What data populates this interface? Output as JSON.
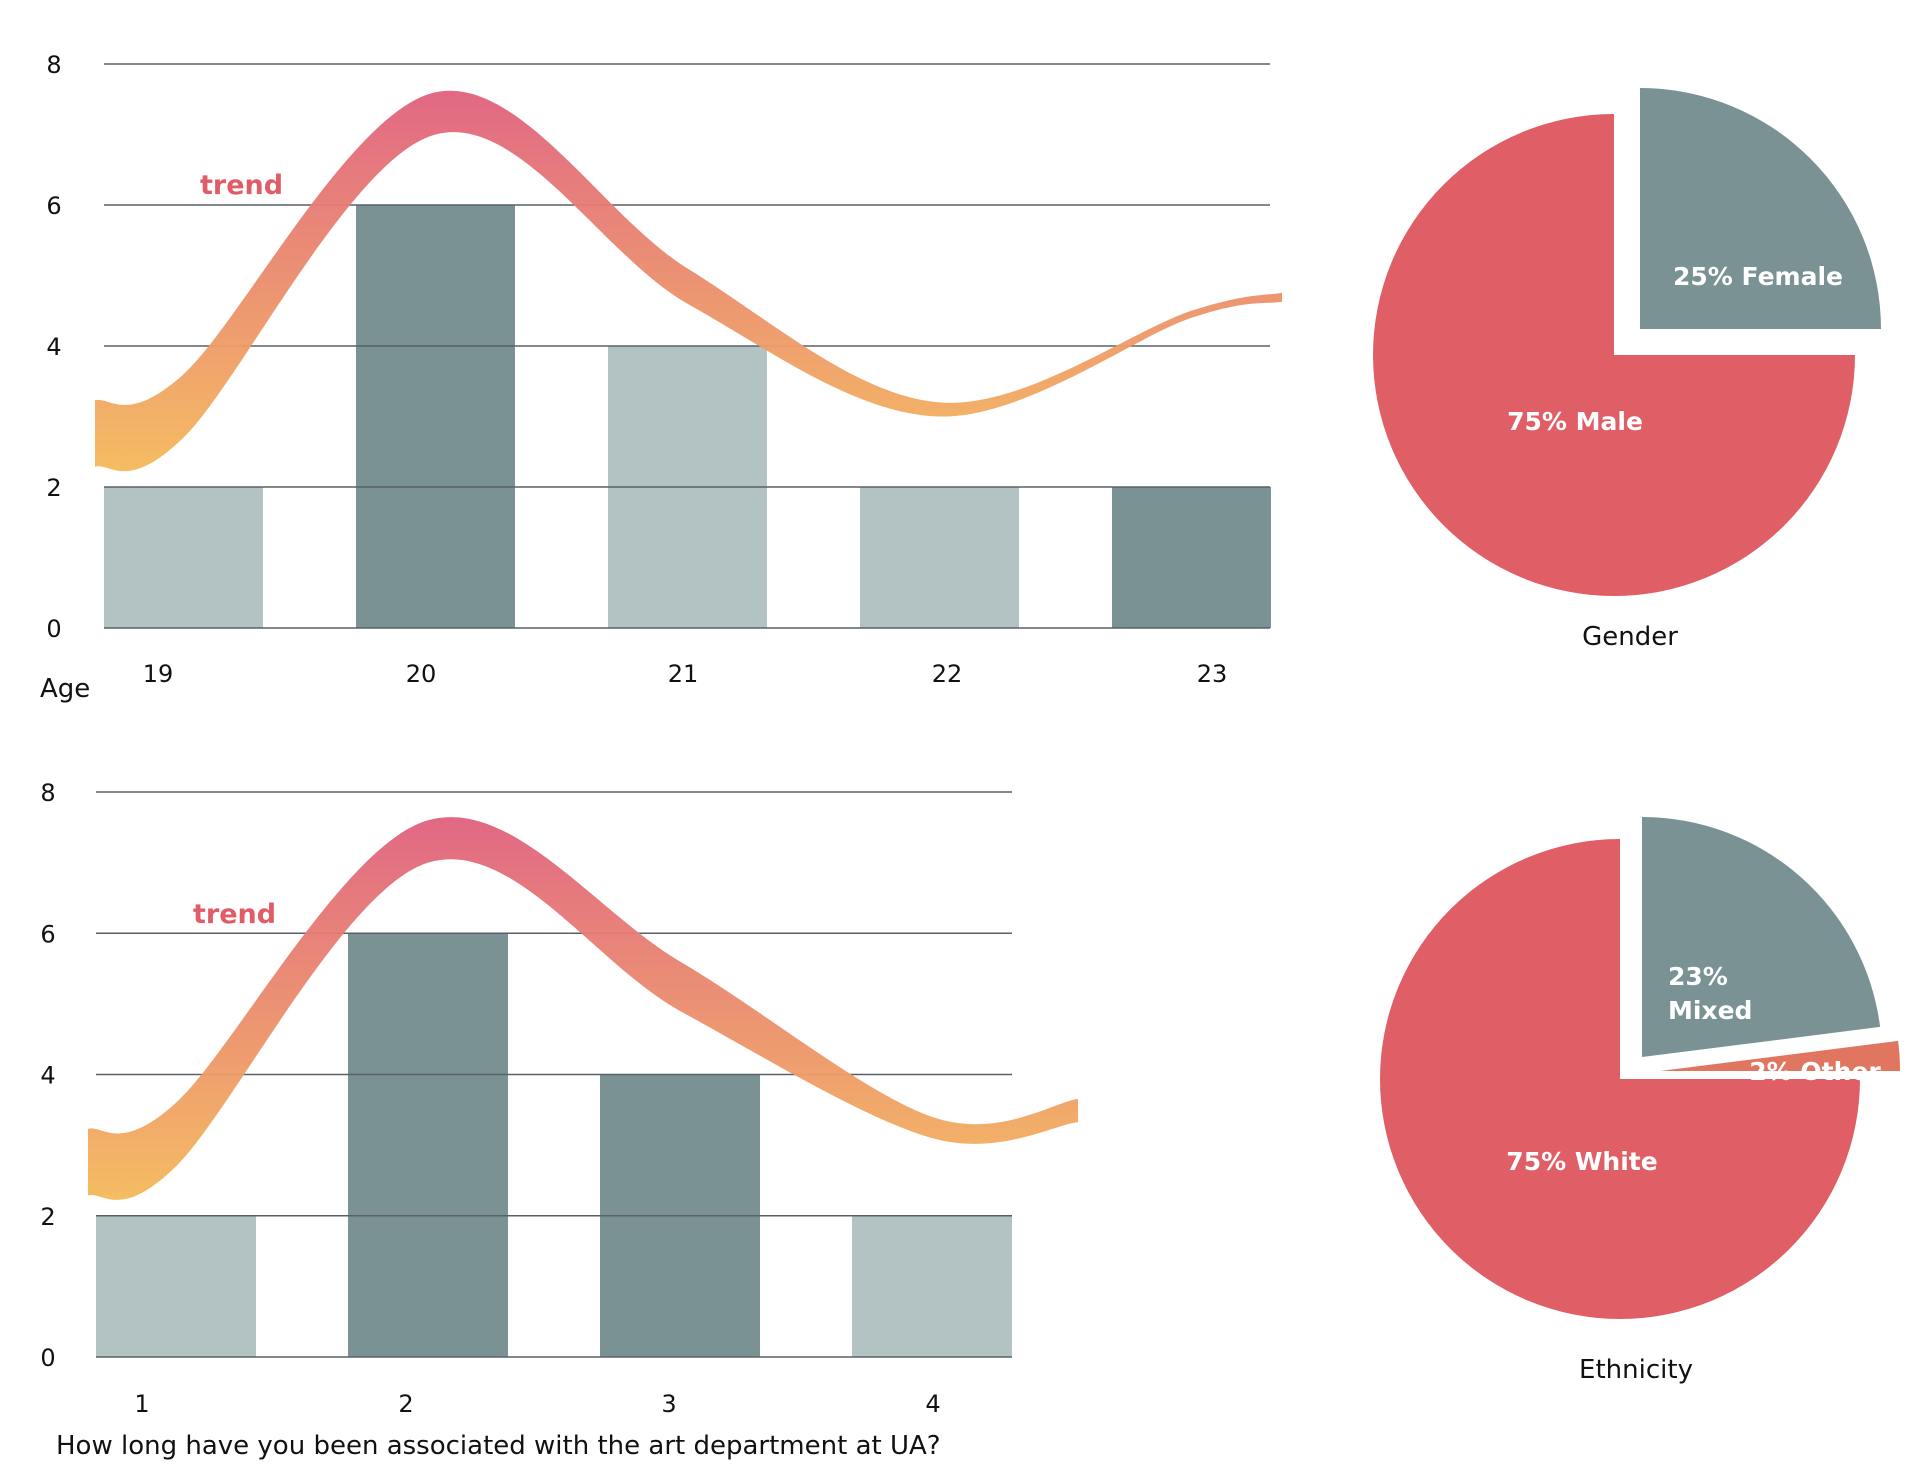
{
  "chart_data": [
    {
      "id": "age",
      "type": "bar",
      "title": "",
      "xlabel": "Age",
      "ylabel": "",
      "ylim": [
        0,
        8
      ],
      "yticks": [
        "0",
        "2",
        "4",
        "6",
        "8"
      ],
      "grid": true,
      "categories": [
        "19",
        "20",
        "21",
        "22",
        "23"
      ],
      "values": [
        2,
        6,
        4,
        2,
        2
      ],
      "bar_shades": [
        "light",
        "dark",
        "light",
        "light",
        "dark"
      ],
      "trend": {
        "label": "trend",
        "upper": [
          3.6,
          7.6,
          5.1,
          3.2,
          4.5
        ],
        "lower": [
          2.7,
          7.0,
          4.6,
          3.0,
          4.4
        ]
      }
    },
    {
      "id": "years_associated",
      "type": "bar",
      "title": "",
      "xlabel": "How long have you been associated with the art department at UA?",
      "ylabel": "",
      "ylim": [
        0,
        8
      ],
      "yticks": [
        "0",
        "2",
        "4",
        "6",
        "8"
      ],
      "grid": true,
      "categories": [
        "1",
        "2",
        "3",
        "4"
      ],
      "values": [
        2,
        6,
        4,
        2
      ],
      "bar_shades": [
        "light",
        "dark",
        "dark",
        "light"
      ],
      "trend": {
        "label": "trend",
        "upper": [
          3.6,
          7.6,
          5.6,
          3.4
        ],
        "lower": [
          2.7,
          7.0,
          4.9,
          3.1
        ]
      }
    },
    {
      "id": "gender",
      "type": "pie",
      "title": "Gender",
      "slices": [
        {
          "label": "25% Female",
          "name": "Female",
          "value": 25,
          "color": "#7a9294",
          "exploded": true
        },
        {
          "label": "75% Male",
          "name": "Male",
          "value": 75,
          "color": "#e05f66",
          "exploded": false
        }
      ]
    },
    {
      "id": "ethnicity",
      "type": "pie",
      "title": "Ethnicity",
      "slices": [
        {
          "label": "23% Mixed",
          "name": "Mixed",
          "value": 23,
          "color": "#7a9294",
          "exploded": true
        },
        {
          "label": "2% Other",
          "name": "Other",
          "value": 2,
          "color": "#e07560",
          "exploded": true
        },
        {
          "label": "75% White",
          "name": "White",
          "value": 75,
          "color": "#e05f66",
          "exploded": false
        }
      ]
    }
  ],
  "colors": {
    "bar_light": "#b3c2c2",
    "bar_dark": "#7a9294",
    "grid": "#5a6068",
    "trend_top": "#e0607e",
    "trend_bottom": "#f5b95a"
  }
}
